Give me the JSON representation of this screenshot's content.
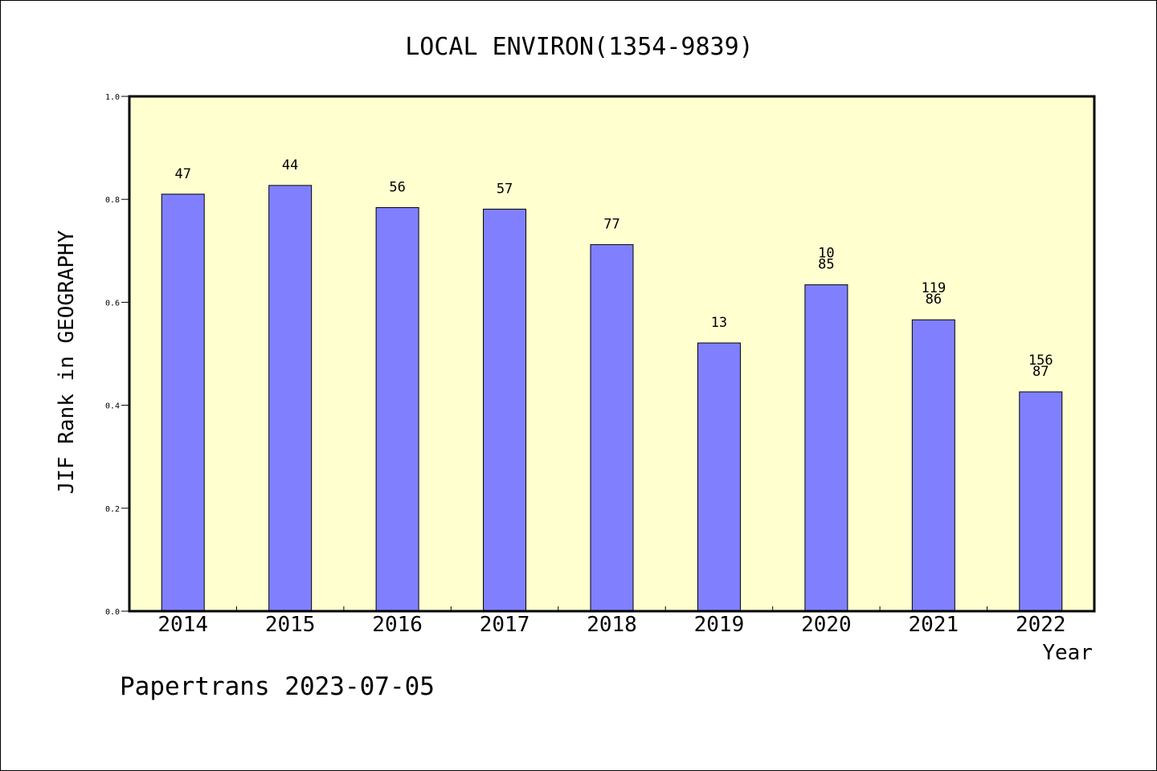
{
  "chart_data": {
    "type": "bar",
    "title": "LOCAL ENVIRON(1354-9839)",
    "xlabel": "Year",
    "ylabel": "JIF Rank in GEOGRAPHY",
    "footer": "Papertrans 2023-07-05",
    "categories": [
      "2014",
      "2015",
      "2016",
      "2017",
      "2018",
      "2019",
      "2020",
      "2021",
      "2022"
    ],
    "values": [
      0.81,
      0.827,
      0.784,
      0.781,
      0.712,
      0.521,
      0.634,
      0.566,
      0.426
    ],
    "bar_labels": [
      [
        "47"
      ],
      [
        "44"
      ],
      [
        "56"
      ],
      [
        "57"
      ],
      [
        "77"
      ],
      [
        "13"
      ],
      [
        "10",
        "85"
      ],
      [
        "119",
        "86"
      ],
      [
        "156",
        "87"
      ]
    ],
    "ylim": [
      0,
      1
    ],
    "yticks": [
      "0.0",
      "0.2",
      "0.4",
      "0.6",
      "0.8",
      "1.0"
    ],
    "grid": false,
    "colors": {
      "plot_background": "#ffffd0",
      "bar_fill": "#8080ff",
      "bar_stroke": "#000000"
    }
  }
}
